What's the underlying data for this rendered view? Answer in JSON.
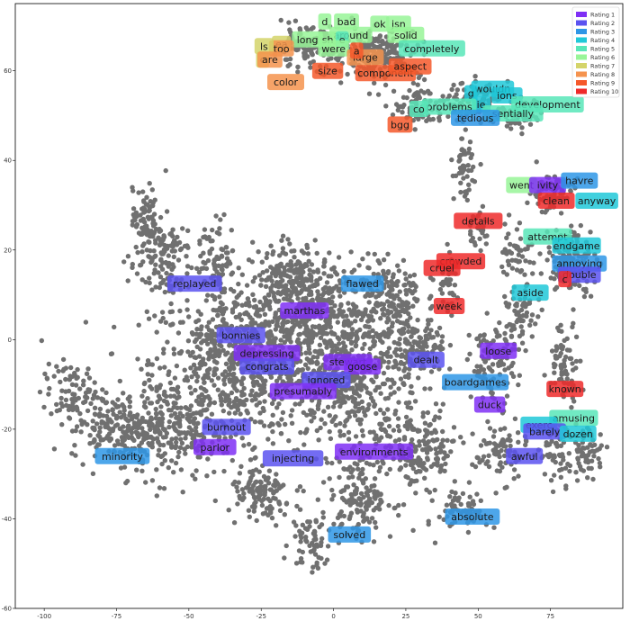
{
  "chart_data": {
    "type": "scatter",
    "title": "",
    "xlabel": "",
    "ylabel": "",
    "xlim": [
      -110,
      100
    ],
    "ylim": [
      -60,
      75
    ],
    "x_ticks": [
      -100,
      -75,
      -50,
      -25,
      0,
      25,
      50,
      75
    ],
    "y_ticks": [
      -60,
      -40,
      -20,
      0,
      20,
      40,
      60
    ],
    "background_points": {
      "color": "#707070"
    },
    "legend": {
      "placement": "top-right",
      "entries": [
        {
          "label": "Rating 1",
          "color": "#7f2ff5"
        },
        {
          "label": "Rating 2",
          "color": "#5a52f0"
        },
        {
          "label": "Rating 3",
          "color": "#2e96e6"
        },
        {
          "label": "Rating 4",
          "color": "#20c8d8"
        },
        {
          "label": "Rating 5",
          "color": "#58e6b8"
        },
        {
          "label": "Rating 6",
          "color": "#98f598"
        },
        {
          "label": "Rating 7",
          "color": "#d4d46a"
        },
        {
          "label": "Rating 8",
          "color": "#f5934e"
        },
        {
          "label": "Rating 9",
          "color": "#f5582a"
        },
        {
          "label": "Rating 10",
          "color": "#ef2a2a"
        }
      ]
    },
    "words": [
      {
        "text": "replayed",
        "x": -48,
        "y": 12.5,
        "rating": 2
      },
      {
        "text": "flawed",
        "x": 10,
        "y": 12.5,
        "rating": 3
      },
      {
        "text": "marthas",
        "x": -10,
        "y": 6.5,
        "rating": 1
      },
      {
        "text": "bonnies",
        "x": -32,
        "y": 1,
        "rating": 2
      },
      {
        "text": "depressing",
        "x": -23,
        "y": -3,
        "rating": 1
      },
      {
        "text": "congrats",
        "x": -23,
        "y": -6,
        "rating": 2
      },
      {
        "text": "stewart",
        "x": 5,
        "y": -5,
        "rating": 1
      },
      {
        "text": "goose",
        "x": 10,
        "y": -6,
        "rating": 1
      },
      {
        "text": "ignored",
        "x": -2.5,
        "y": -9,
        "rating": 2
      },
      {
        "text": "presumably",
        "x": -10.5,
        "y": -11.5,
        "rating": 1
      },
      {
        "text": "dealt",
        "x": 32,
        "y": -4.5,
        "rating": 2
      },
      {
        "text": "loose",
        "x": 57,
        "y": -2.5,
        "rating": 1
      },
      {
        "text": "boardgames",
        "x": 49,
        "y": -9.5,
        "rating": 3
      },
      {
        "text": "duck",
        "x": 54,
        "y": -14.5,
        "rating": 1
      },
      {
        "text": "burnout",
        "x": -37,
        "y": -19.5,
        "rating": 2
      },
      {
        "text": "parlor",
        "x": -41,
        "y": -24,
        "rating": 1
      },
      {
        "text": "minority",
        "x": -73,
        "y": -26,
        "rating": 3
      },
      {
        "text": "injecting",
        "x": -14,
        "y": -26.5,
        "rating": 2
      },
      {
        "text": "environments",
        "x": 14,
        "y": -25,
        "rating": 1
      },
      {
        "text": "solved",
        "x": 5.5,
        "y": -43.5,
        "rating": 3
      },
      {
        "text": "absolute",
        "x": 48,
        "y": -39.5,
        "rating": 3
      },
      {
        "text": "awful",
        "x": 66,
        "y": -26,
        "rating": 2
      },
      {
        "text": "known",
        "x": 80,
        "y": -11,
        "rating": 10
      },
      {
        "text": "amusing",
        "x": 83,
        "y": -17.5,
        "rating": 5
      },
      {
        "text": "exerc",
        "x": 71,
        "y": -19,
        "rating": 4
      },
      {
        "text": "barely",
        "x": 73,
        "y": -20.5,
        "rating": 2
      },
      {
        "text": "dozen",
        "x": 84.5,
        "y": -21,
        "rating": 4
      },
      {
        "text": "aside",
        "x": 68,
        "y": 10.5,
        "rating": 4
      },
      {
        "text": "attempt",
        "x": 74,
        "y": 23,
        "rating": 5
      },
      {
        "text": "endgame",
        "x": 84,
        "y": 21,
        "rating": 4
      },
      {
        "text": "annoying",
        "x": 85,
        "y": 17,
        "rating": 3
      },
      {
        "text": "double",
        "x": 85,
        "y": 14.5,
        "rating": 2
      },
      {
        "text": "c",
        "x": 80,
        "y": 13.5,
        "rating": 10
      },
      {
        "text": "details",
        "x": 50,
        "y": 26.5,
        "rating": 10
      },
      {
        "text": "crowded",
        "x": 44,
        "y": 17.5,
        "rating": 10
      },
      {
        "text": "cruel",
        "x": 37.5,
        "y": 16,
        "rating": 10
      },
      {
        "text": "week",
        "x": 40,
        "y": 7.5,
        "rating": 10
      },
      {
        "text": "went",
        "x": 65,
        "y": 34.5,
        "rating": 6
      },
      {
        "text": "ivity",
        "x": 74,
        "y": 34.5,
        "rating": 1
      },
      {
        "text": "havre",
        "x": 85,
        "y": 35.5,
        "rating": 3
      },
      {
        "text": "clean",
        "x": 77,
        "y": 31,
        "rating": 10
      },
      {
        "text": "anyway",
        "x": 91,
        "y": 31,
        "rating": 4
      },
      {
        "text": "bad",
        "x": 4.5,
        "y": 71,
        "rating": 6
      },
      {
        "text": "d",
        "x": -3,
        "y": 71,
        "rating": 6
      },
      {
        "text": "ok",
        "x": 16,
        "y": 70.5,
        "rating": 6
      },
      {
        "text": "jsn",
        "x": 22.5,
        "y": 70.5,
        "rating": 6
      },
      {
        "text": "around",
        "x": 6,
        "y": 68,
        "rating": 6
      },
      {
        "text": "solid",
        "x": 25,
        "y": 68,
        "rating": 6
      },
      {
        "text": "long",
        "x": -9,
        "y": 67,
        "rating": 6
      },
      {
        "text": "sh",
        "x": -2,
        "y": 67,
        "rating": 6
      },
      {
        "text": "e",
        "x": 3,
        "y": 67,
        "rating": 5
      },
      {
        "text": "ea",
        "x": -18,
        "y": 66,
        "rating": 7
      },
      {
        "text": "too",
        "x": -18,
        "y": 65,
        "rating": 8
      },
      {
        "text": "were",
        "x": 0,
        "y": 65,
        "rating": 6
      },
      {
        "text": "completely",
        "x": 34,
        "y": 65,
        "rating": 5
      },
      {
        "text": "ls",
        "x": -24,
        "y": 65.5,
        "rating": 7
      },
      {
        "text": "c",
        "x": -24.5,
        "y": 62.5,
        "rating": 7
      },
      {
        "text": "are",
        "x": -22,
        "y": 62.5,
        "rating": 8
      },
      {
        "text": "large",
        "x": 11,
        "y": 63,
        "rating": 8
      },
      {
        "text": "a",
        "x": 8,
        "y": 64.5,
        "rating": 9
      },
      {
        "text": "size",
        "x": -2,
        "y": 60,
        "rating": 9
      },
      {
        "text": "component",
        "x": 18,
        "y": 59.5,
        "rating": 9
      },
      {
        "text": "aspect",
        "x": 26.5,
        "y": 61,
        "rating": 9
      },
      {
        "text": "color",
        "x": -16.5,
        "y": 57.5,
        "rating": 8
      },
      {
        "text": "wouldn",
        "x": 55,
        "y": 56,
        "rating": 4
      },
      {
        "text": "g",
        "x": 47.5,
        "y": 55,
        "rating": 4
      },
      {
        "text": "ions",
        "x": 60,
        "y": 54.5,
        "rating": 4
      },
      {
        "text": "ie",
        "x": 51,
        "y": 52.5,
        "rating": 4
      },
      {
        "text": "development",
        "x": 74,
        "y": 52.5,
        "rating": 5
      },
      {
        "text": "problems",
        "x": 40,
        "y": 52,
        "rating": 5
      },
      {
        "text": "co",
        "x": 29.5,
        "y": 51.5,
        "rating": 5
      },
      {
        "text": "sentially",
        "x": 62,
        "y": 50.5,
        "rating": 5
      },
      {
        "text": "tedious",
        "x": 49,
        "y": 49.5,
        "rating": 3
      },
      {
        "text": "bgg",
        "x": 23,
        "y": 48,
        "rating": 9
      }
    ]
  }
}
